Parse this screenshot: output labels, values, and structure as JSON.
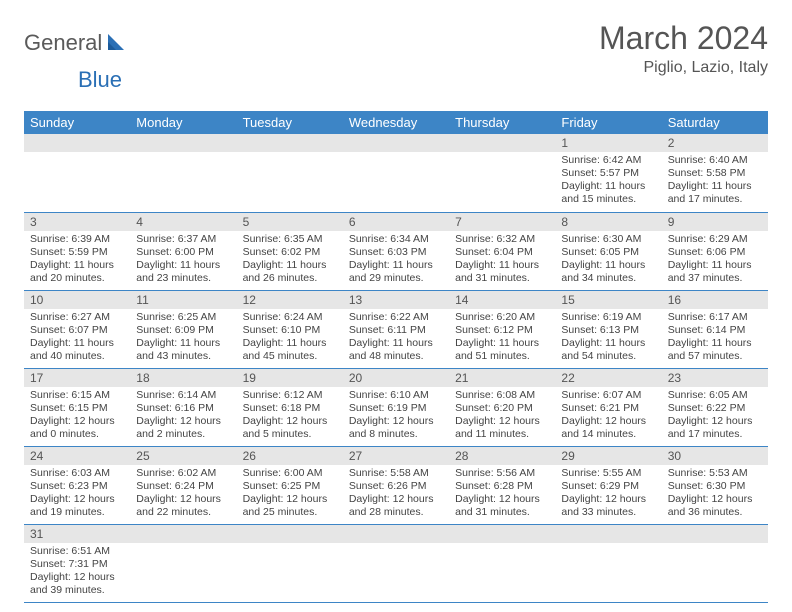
{
  "logo": {
    "text_general": "General",
    "text_blue": "Blue",
    "general_color": "#5a5a5a",
    "blue_color": "#2a6fb5",
    "sail_color": "#2a6fb5"
  },
  "title": "March 2024",
  "location": "Piglio, Lazio, Italy",
  "colors": {
    "header_bg": "#3d85c6",
    "header_fg": "#ffffff",
    "daynum_bg": "#e6e6e6",
    "row_border": "#3d85c6",
    "text": "#444444"
  },
  "weekdays": [
    "Sunday",
    "Monday",
    "Tuesday",
    "Wednesday",
    "Thursday",
    "Friday",
    "Saturday"
  ],
  "weeks": [
    [
      null,
      null,
      null,
      null,
      null,
      {
        "n": "1",
        "sr": "Sunrise: 6:42 AM",
        "ss": "Sunset: 5:57 PM",
        "dl": "Daylight: 11 hours and 15 minutes."
      },
      {
        "n": "2",
        "sr": "Sunrise: 6:40 AM",
        "ss": "Sunset: 5:58 PM",
        "dl": "Daylight: 11 hours and 17 minutes."
      }
    ],
    [
      {
        "n": "3",
        "sr": "Sunrise: 6:39 AM",
        "ss": "Sunset: 5:59 PM",
        "dl": "Daylight: 11 hours and 20 minutes."
      },
      {
        "n": "4",
        "sr": "Sunrise: 6:37 AM",
        "ss": "Sunset: 6:00 PM",
        "dl": "Daylight: 11 hours and 23 minutes."
      },
      {
        "n": "5",
        "sr": "Sunrise: 6:35 AM",
        "ss": "Sunset: 6:02 PM",
        "dl": "Daylight: 11 hours and 26 minutes."
      },
      {
        "n": "6",
        "sr": "Sunrise: 6:34 AM",
        "ss": "Sunset: 6:03 PM",
        "dl": "Daylight: 11 hours and 29 minutes."
      },
      {
        "n": "7",
        "sr": "Sunrise: 6:32 AM",
        "ss": "Sunset: 6:04 PM",
        "dl": "Daylight: 11 hours and 31 minutes."
      },
      {
        "n": "8",
        "sr": "Sunrise: 6:30 AM",
        "ss": "Sunset: 6:05 PM",
        "dl": "Daylight: 11 hours and 34 minutes."
      },
      {
        "n": "9",
        "sr": "Sunrise: 6:29 AM",
        "ss": "Sunset: 6:06 PM",
        "dl": "Daylight: 11 hours and 37 minutes."
      }
    ],
    [
      {
        "n": "10",
        "sr": "Sunrise: 6:27 AM",
        "ss": "Sunset: 6:07 PM",
        "dl": "Daylight: 11 hours and 40 minutes."
      },
      {
        "n": "11",
        "sr": "Sunrise: 6:25 AM",
        "ss": "Sunset: 6:09 PM",
        "dl": "Daylight: 11 hours and 43 minutes."
      },
      {
        "n": "12",
        "sr": "Sunrise: 6:24 AM",
        "ss": "Sunset: 6:10 PM",
        "dl": "Daylight: 11 hours and 45 minutes."
      },
      {
        "n": "13",
        "sr": "Sunrise: 6:22 AM",
        "ss": "Sunset: 6:11 PM",
        "dl": "Daylight: 11 hours and 48 minutes."
      },
      {
        "n": "14",
        "sr": "Sunrise: 6:20 AM",
        "ss": "Sunset: 6:12 PM",
        "dl": "Daylight: 11 hours and 51 minutes."
      },
      {
        "n": "15",
        "sr": "Sunrise: 6:19 AM",
        "ss": "Sunset: 6:13 PM",
        "dl": "Daylight: 11 hours and 54 minutes."
      },
      {
        "n": "16",
        "sr": "Sunrise: 6:17 AM",
        "ss": "Sunset: 6:14 PM",
        "dl": "Daylight: 11 hours and 57 minutes."
      }
    ],
    [
      {
        "n": "17",
        "sr": "Sunrise: 6:15 AM",
        "ss": "Sunset: 6:15 PM",
        "dl": "Daylight: 12 hours and 0 minutes."
      },
      {
        "n": "18",
        "sr": "Sunrise: 6:14 AM",
        "ss": "Sunset: 6:16 PM",
        "dl": "Daylight: 12 hours and 2 minutes."
      },
      {
        "n": "19",
        "sr": "Sunrise: 6:12 AM",
        "ss": "Sunset: 6:18 PM",
        "dl": "Daylight: 12 hours and 5 minutes."
      },
      {
        "n": "20",
        "sr": "Sunrise: 6:10 AM",
        "ss": "Sunset: 6:19 PM",
        "dl": "Daylight: 12 hours and 8 minutes."
      },
      {
        "n": "21",
        "sr": "Sunrise: 6:08 AM",
        "ss": "Sunset: 6:20 PM",
        "dl": "Daylight: 12 hours and 11 minutes."
      },
      {
        "n": "22",
        "sr": "Sunrise: 6:07 AM",
        "ss": "Sunset: 6:21 PM",
        "dl": "Daylight: 12 hours and 14 minutes."
      },
      {
        "n": "23",
        "sr": "Sunrise: 6:05 AM",
        "ss": "Sunset: 6:22 PM",
        "dl": "Daylight: 12 hours and 17 minutes."
      }
    ],
    [
      {
        "n": "24",
        "sr": "Sunrise: 6:03 AM",
        "ss": "Sunset: 6:23 PM",
        "dl": "Daylight: 12 hours and 19 minutes."
      },
      {
        "n": "25",
        "sr": "Sunrise: 6:02 AM",
        "ss": "Sunset: 6:24 PM",
        "dl": "Daylight: 12 hours and 22 minutes."
      },
      {
        "n": "26",
        "sr": "Sunrise: 6:00 AM",
        "ss": "Sunset: 6:25 PM",
        "dl": "Daylight: 12 hours and 25 minutes."
      },
      {
        "n": "27",
        "sr": "Sunrise: 5:58 AM",
        "ss": "Sunset: 6:26 PM",
        "dl": "Daylight: 12 hours and 28 minutes."
      },
      {
        "n": "28",
        "sr": "Sunrise: 5:56 AM",
        "ss": "Sunset: 6:28 PM",
        "dl": "Daylight: 12 hours and 31 minutes."
      },
      {
        "n": "29",
        "sr": "Sunrise: 5:55 AM",
        "ss": "Sunset: 6:29 PM",
        "dl": "Daylight: 12 hours and 33 minutes."
      },
      {
        "n": "30",
        "sr": "Sunrise: 5:53 AM",
        "ss": "Sunset: 6:30 PM",
        "dl": "Daylight: 12 hours and 36 minutes."
      }
    ],
    [
      {
        "n": "31",
        "sr": "Sunrise: 6:51 AM",
        "ss": "Sunset: 7:31 PM",
        "dl": "Daylight: 12 hours and 39 minutes."
      },
      null,
      null,
      null,
      null,
      null,
      null
    ]
  ]
}
